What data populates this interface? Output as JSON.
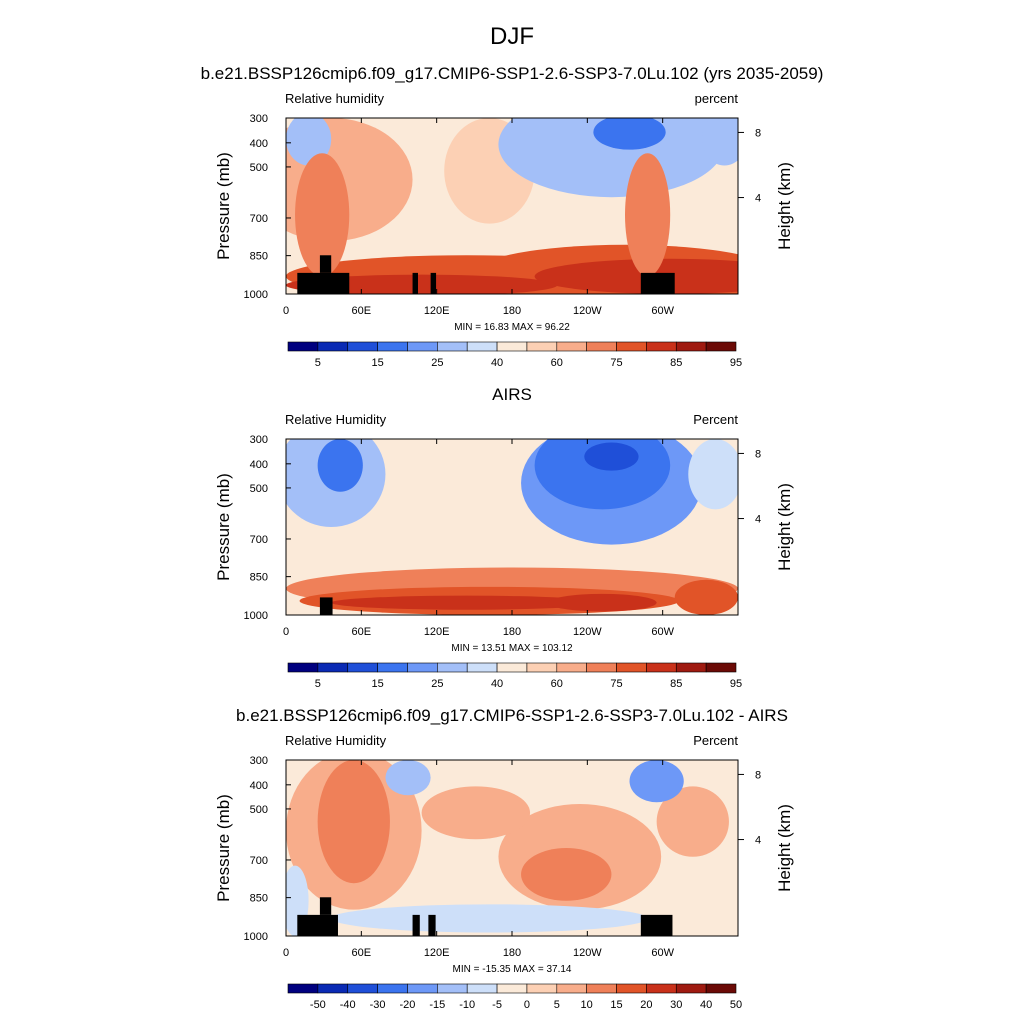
{
  "title": "DJF",
  "chart_data": [
    {
      "type": "heatmap",
      "title": "b.e21.BSSP126cmip6.f09_g17.CMIP6-SSP1-2.6-SSP3-7.0Lu.102 (yrs 2035-2059)",
      "left_label": "Relative humidity",
      "right_label": "percent",
      "ylabel": "Pressure (mb)",
      "ylabel_right": "Height (km)",
      "x_ticks": [
        "0",
        "60E",
        "120E",
        "180",
        "120W",
        "60W"
      ],
      "y_ticks": [
        "300",
        "400",
        "500",
        "700",
        "850",
        "1000"
      ],
      "y_ticks_right": [
        "8",
        "4"
      ],
      "min_max_text": "MIN = 16.83 MAX = 96.22",
      "min": 16.83,
      "max": 96.22,
      "colorbar_labels": [
        "5",
        "15",
        "25",
        "40",
        "60",
        "75",
        "85",
        "95"
      ],
      "colorbar_colors": [
        "#00007f",
        "#0a2ab4",
        "#1f4fd8",
        "#3b74ef",
        "#6d98f7",
        "#a3bff8",
        "#cddff9",
        "#fbead9",
        "#fcd0b4",
        "#f8ad8b",
        "#ef8059",
        "#e15428",
        "#c9311a",
        "#9f1a10",
        "#6b0a06"
      ]
    },
    {
      "type": "heatmap",
      "title": "AIRS",
      "left_label": "Relative Humidity",
      "right_label": "Percent",
      "ylabel": "Pressure (mb)",
      "ylabel_right": "Height (km)",
      "x_ticks": [
        "0",
        "60E",
        "120E",
        "180",
        "120W",
        "60W"
      ],
      "y_ticks": [
        "300",
        "400",
        "500",
        "700",
        "850",
        "1000"
      ],
      "y_ticks_right": [
        "8",
        "4"
      ],
      "min_max_text": "MIN = 13.51 MAX = 103.12",
      "min": 13.51,
      "max": 103.12,
      "colorbar_labels": [
        "5",
        "15",
        "25",
        "40",
        "60",
        "75",
        "85",
        "95"
      ],
      "colorbar_colors": [
        "#00007f",
        "#0a2ab4",
        "#1f4fd8",
        "#3b74ef",
        "#6d98f7",
        "#a3bff8",
        "#cddff9",
        "#fbead9",
        "#fcd0b4",
        "#f8ad8b",
        "#ef8059",
        "#e15428",
        "#c9311a",
        "#9f1a10",
        "#6b0a06"
      ]
    },
    {
      "type": "heatmap",
      "title": "b.e21.BSSP126cmip6.f09_g17.CMIP6-SSP1-2.6-SSP3-7.0Lu.102 - AIRS",
      "left_label": "Relative Humidity",
      "right_label": "Percent",
      "ylabel": "Pressure (mb)",
      "ylabel_right": "Height (km)",
      "x_ticks": [
        "0",
        "60E",
        "120E",
        "180",
        "120W",
        "60W"
      ],
      "y_ticks": [
        "300",
        "400",
        "500",
        "700",
        "850",
        "1000"
      ],
      "y_ticks_right": [
        "8",
        "4"
      ],
      "min_max_text": "MIN = -15.35 MAX = 37.14",
      "min": -15.35,
      "max": 37.14,
      "colorbar_labels": [
        "-50",
        "-40",
        "-30",
        "-20",
        "-15",
        "-10",
        "-5",
        "0",
        "5",
        "10",
        "15",
        "20",
        "30",
        "40",
        "50"
      ],
      "colorbar_colors": [
        "#00007f",
        "#0a2ab4",
        "#1f4fd8",
        "#3b74ef",
        "#6d98f7",
        "#a3bff8",
        "#cddff9",
        "#fbead9",
        "#fcd0b4",
        "#f8ad8b",
        "#ef8059",
        "#e15428",
        "#c9311a",
        "#9f1a10",
        "#6b0a06"
      ]
    }
  ]
}
